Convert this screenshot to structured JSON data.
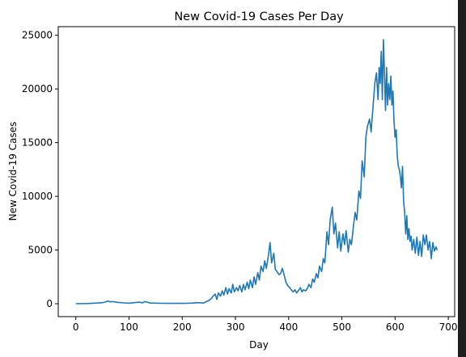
{
  "chart_data": {
    "type": "line",
    "title": "New Covid-19 Cases Per Day",
    "xlabel": "Day",
    "ylabel": "New Covid-19 Cases",
    "xlim": [
      -33,
      712
    ],
    "ylim": [
      -1200,
      25800
    ],
    "xticks": [
      0,
      100,
      200,
      300,
      400,
      500,
      600,
      700
    ],
    "yticks": [
      0,
      5000,
      10000,
      15000,
      20000,
      25000
    ],
    "xtick_labels": [
      "0",
      "100",
      "200",
      "300",
      "400",
      "500",
      "600",
      "700"
    ],
    "ytick_labels": [
      "0",
      "5000",
      "10000",
      "15000",
      "20000",
      "25000"
    ],
    "grid": false,
    "legend": "none",
    "series": [
      {
        "color": "#1f77b4",
        "x": [
          0,
          20,
          40,
          50,
          55,
          60,
          65,
          70,
          75,
          80,
          90,
          100,
          110,
          120,
          125,
          130,
          140,
          160,
          180,
          200,
          210,
          220,
          230,
          240,
          245,
          250,
          255,
          258,
          262,
          265,
          268,
          272,
          275,
          278,
          282,
          285,
          288,
          292,
          295,
          298,
          302,
          305,
          308,
          312,
          315,
          318,
          322,
          325,
          328,
          332,
          335,
          338,
          342,
          345,
          348,
          352,
          355,
          358,
          362,
          365,
          368,
          372,
          375,
          378,
          382,
          385,
          388,
          392,
          395,
          398,
          402,
          405,
          408,
          412,
          415,
          418,
          422,
          425,
          428,
          432,
          435,
          438,
          442,
          445,
          448,
          452,
          455,
          458,
          462,
          465,
          468,
          472,
          475,
          478,
          482,
          485,
          488,
          492,
          495,
          498,
          502,
          505,
          508,
          512,
          515,
          518,
          522,
          525,
          528,
          532,
          535,
          538,
          542,
          545,
          548,
          552,
          555,
          558,
          562,
          565,
          568,
          570,
          572,
          574,
          576,
          578,
          580,
          582,
          584,
          586,
          588,
          590,
          592,
          594,
          596,
          598,
          600,
          602,
          604,
          606,
          608,
          610,
          612,
          614,
          616,
          618,
          620,
          622,
          624,
          626,
          628,
          630,
          632,
          635,
          638,
          641,
          644,
          647,
          650,
          653,
          656,
          659,
          662,
          665,
          668,
          671,
          674,
          677,
          679
        ],
        "y": [
          0,
          20,
          60,
          100,
          150,
          250,
          180,
          200,
          150,
          120,
          80,
          50,
          100,
          150,
          80,
          200,
          60,
          40,
          30,
          30,
          40,
          60,
          100,
          60,
          200,
          300,
          500,
          700,
          900,
          400,
          1000,
          700,
          1200,
          800,
          1500,
          900,
          1400,
          1000,
          1800,
          1100,
          1500,
          1200,
          1700,
          1100,
          1800,
          1300,
          2000,
          1400,
          2200,
          1500,
          2500,
          1800,
          2900,
          2200,
          3500,
          3000,
          4000,
          3300,
          4500,
          5700,
          3800,
          4700,
          3200,
          3000,
          2700,
          2800,
          3300,
          2600,
          2000,
          1700,
          1500,
          1300,
          1100,
          1300,
          1000,
          1200,
          1500,
          1100,
          1300,
          1200,
          1400,
          1800,
          1500,
          2300,
          2000,
          2800,
          2400,
          3500,
          3000,
          4200,
          3800,
          6700,
          5500,
          7800,
          9000,
          6500,
          7500,
          5200,
          6700,
          4900,
          6500,
          5500,
          6800,
          4800,
          6000,
          5500,
          7300,
          8500,
          7800,
          10500,
          9800,
          13300,
          11800,
          15500,
          16500,
          17200,
          16000,
          18000,
          20500,
          21500,
          19000,
          22000,
          20500,
          23500,
          19000,
          24600,
          21500,
          18000,
          22000,
          18500,
          20500,
          19000,
          21200,
          18500,
          19800,
          17000,
          15500,
          16200,
          13800,
          12800,
          12500,
          11800,
          10800,
          12800,
          9500,
          8500,
          6500,
          8200,
          6000,
          7000,
          5800,
          6300,
          5000,
          6000,
          4700,
          6200,
          4500,
          5800,
          4400,
          6400,
          5500,
          6400,
          5000,
          5800,
          4200,
          5700,
          4900,
          5300,
          5000
        ]
      }
    ]
  }
}
